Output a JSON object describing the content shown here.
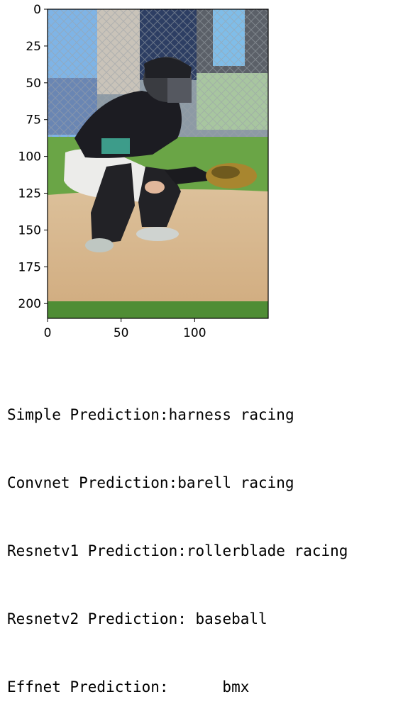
{
  "figure": {
    "image_subject": "baseball catcher crouching",
    "x_axis": {
      "ticks": [
        "0",
        "50",
        "100"
      ],
      "range": [
        0,
        150
      ]
    },
    "y_axis": {
      "ticks": [
        "0",
        "25",
        "50",
        "75",
        "100",
        "125",
        "150",
        "175",
        "200"
      ],
      "range": [
        0,
        210
      ],
      "inverted": true
    }
  },
  "predictions": [
    {
      "label": "Simple Prediction:",
      "value": "harness racing"
    },
    {
      "label": "Convnet Prediction:",
      "value": "barell racing"
    },
    {
      "label": "Resnetv1 Prediction:",
      "value": "rollerblade racing"
    },
    {
      "label": "Resnetv2 Prediction:",
      "value": " baseball"
    },
    {
      "label": "Effnet Prediction:",
      "value": "      bmx"
    }
  ],
  "colors": {
    "field_grass": "#5e9a3c",
    "dirt": "#d7b78e",
    "jersey": "#1b1b1f",
    "pants": "#ededeb",
    "mitt": "#a8862f"
  }
}
